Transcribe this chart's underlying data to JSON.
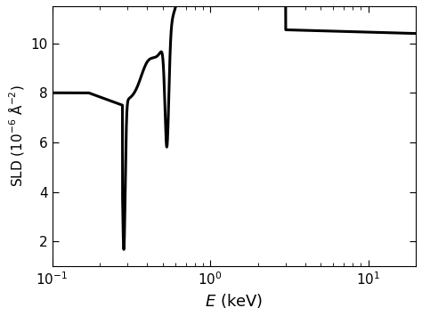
{
  "xlabel": "$E$ (keV)",
  "ylabel": "SLD $(10^{-6}$ $\\AA^{-2})$",
  "xlim": [
    0.1,
    20
  ],
  "ylim": [
    1.0,
    11.5
  ],
  "yticks": [
    2,
    4,
    6,
    8,
    10
  ],
  "background_color": "#ffffff",
  "line_color": "#000000",
  "line_width": 2.2,
  "figsize": [
    4.74,
    3.55
  ],
  "dpi": 100,
  "C_edge": 0.284,
  "O_edge": 0.532,
  "C_min": 1.95,
  "O_min": 4.3,
  "peak1": 8.85,
  "peak2": 10.6,
  "high_E_val": 10.2
}
